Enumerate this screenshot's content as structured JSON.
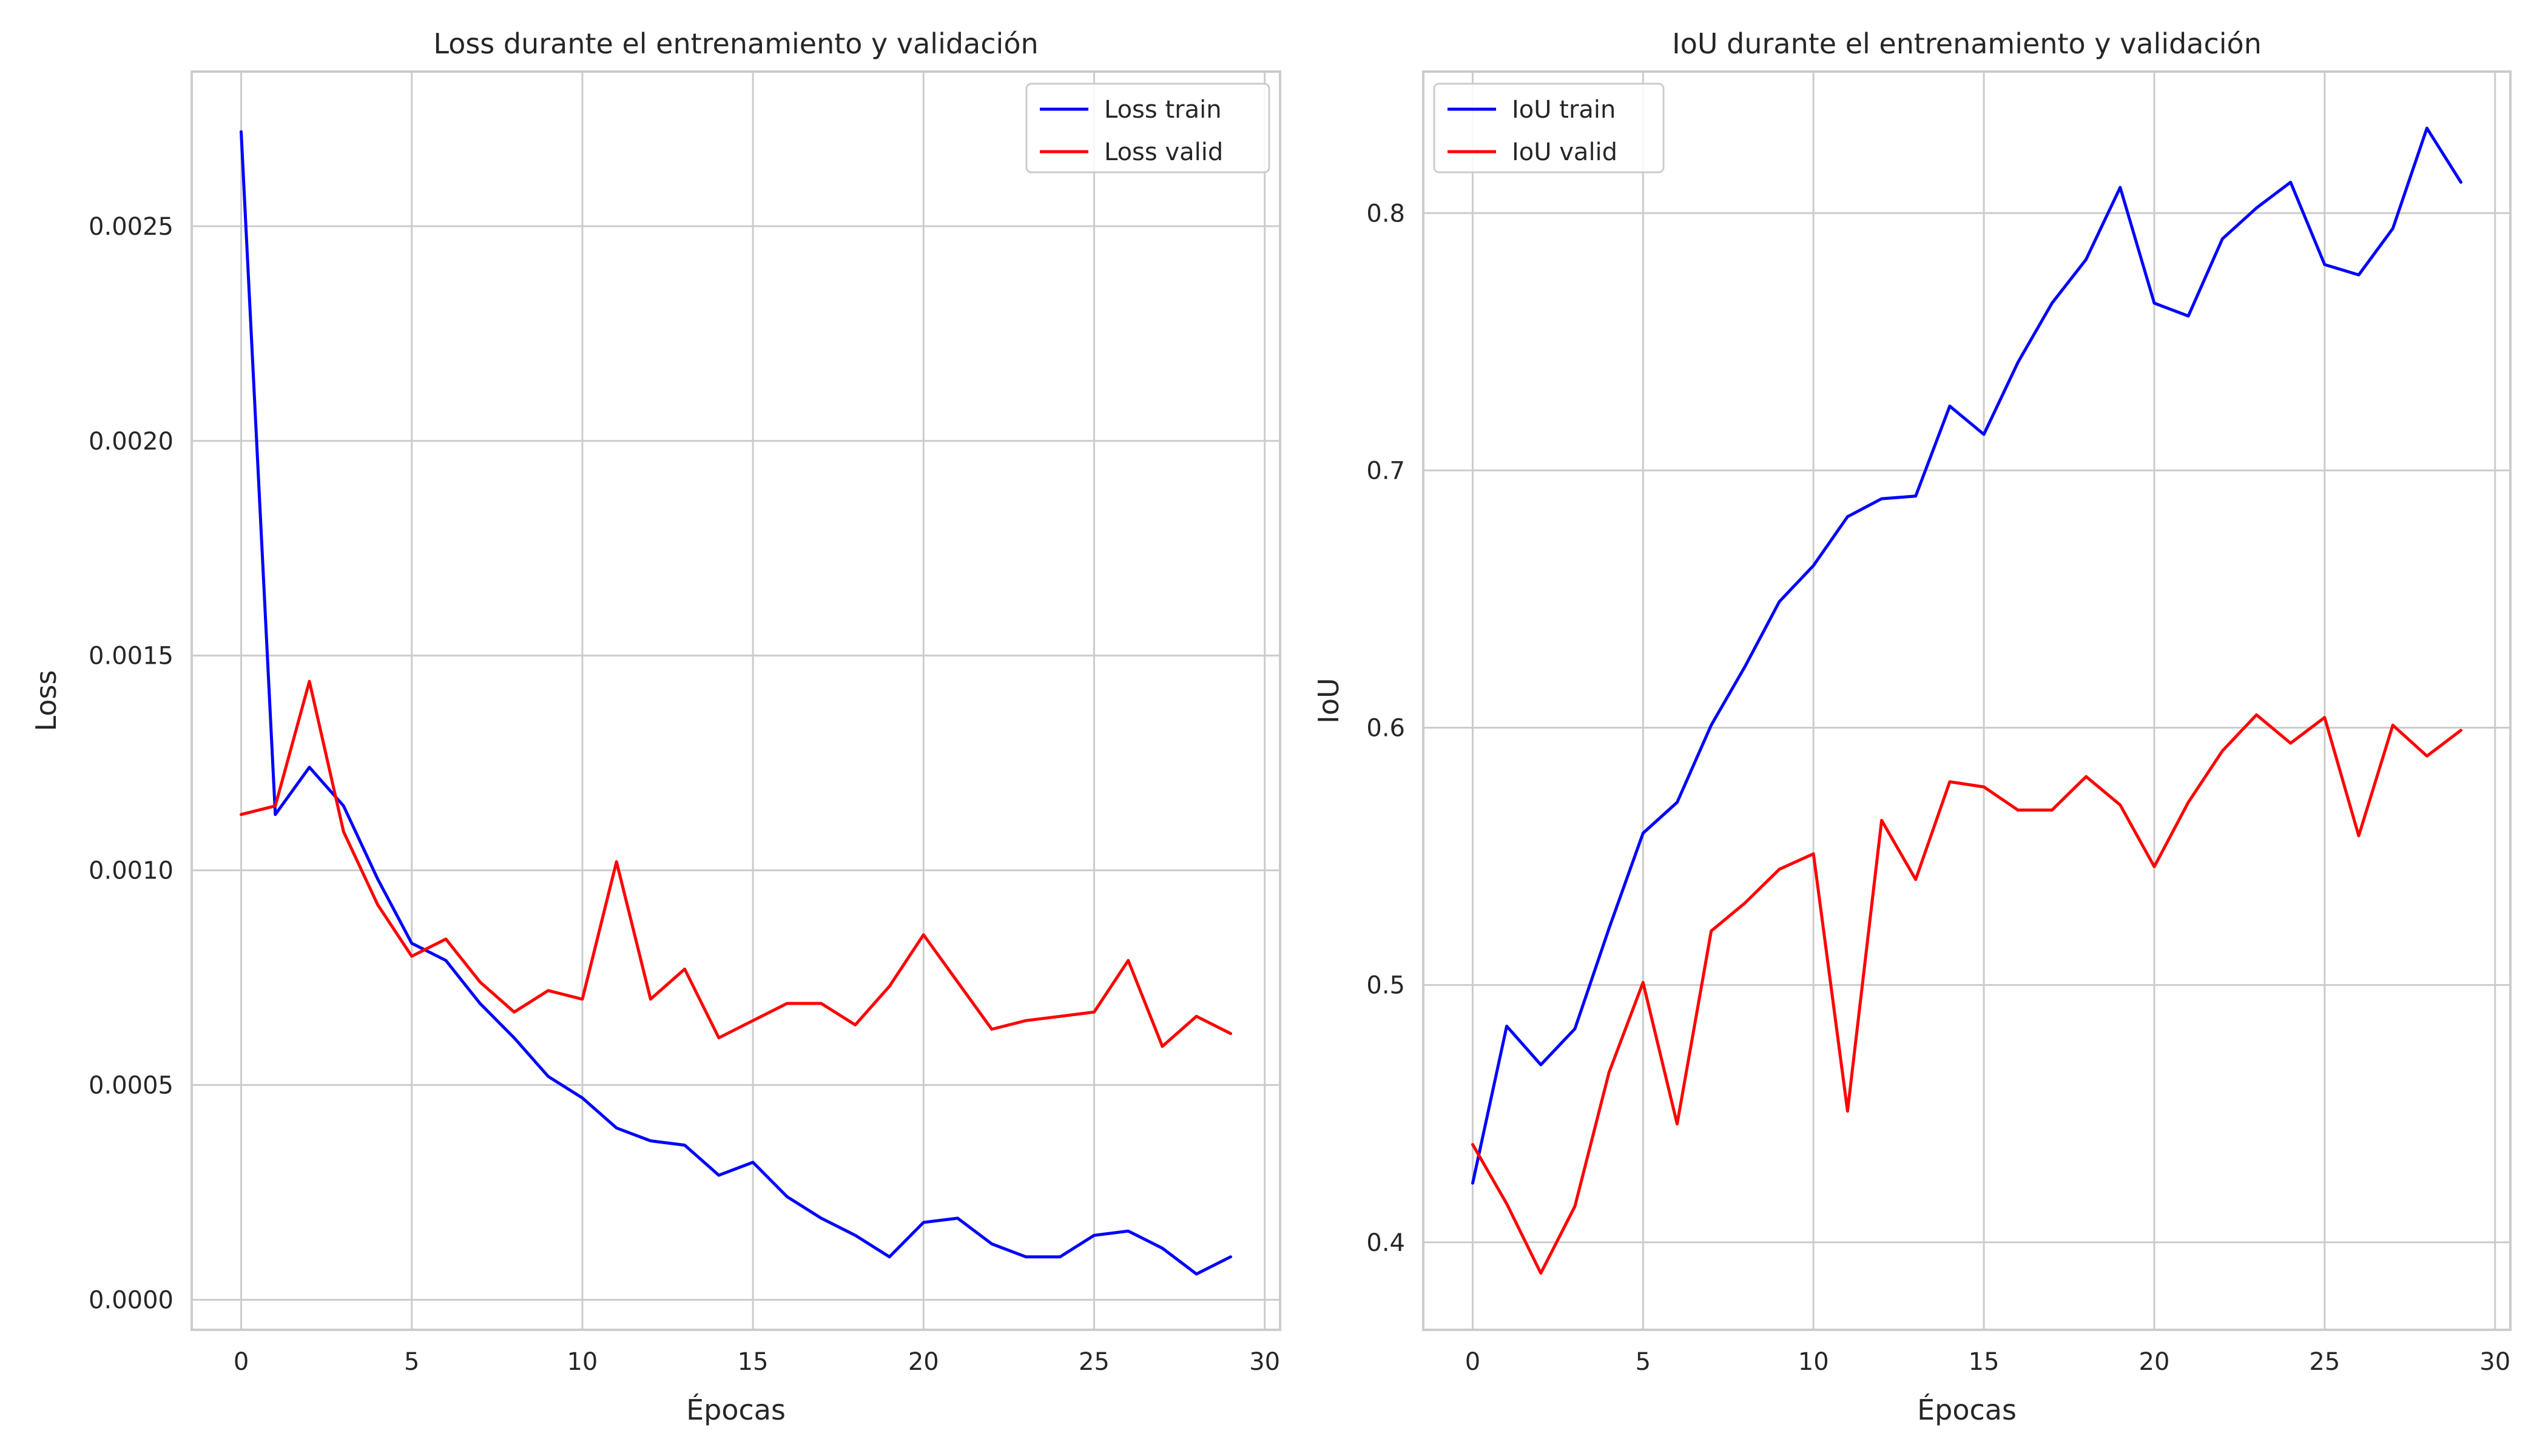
{
  "chart_data": [
    {
      "type": "line",
      "title": "Loss durante el entrenamiento y validación",
      "xlabel": "Épocas",
      "ylabel": "Loss",
      "xlim": [
        -1.45,
        30.45
      ],
      "ylim": [
        -7e-05,
        0.00286
      ],
      "xticks": [
        0,
        5,
        10,
        15,
        20,
        25,
        30
      ],
      "xtick_labels": [
        "0",
        "5",
        "10",
        "15",
        "20",
        "25",
        "30"
      ],
      "yticks": [
        0,
        0.0005,
        0.001,
        0.0015,
        0.002,
        0.0025
      ],
      "ytick_labels": [
        "0.0000",
        "0.0005",
        "0.0010",
        "0.0015",
        "0.0020",
        "0.0025"
      ],
      "grid": true,
      "legend_position": "top-right",
      "x": [
        0,
        1,
        2,
        3,
        4,
        5,
        6,
        7,
        8,
        9,
        10,
        11,
        12,
        13,
        14,
        15,
        16,
        17,
        18,
        19,
        20,
        21,
        22,
        23,
        24,
        25,
        26,
        27,
        28,
        29
      ],
      "series": [
        {
          "name": "Loss train",
          "color": "#0000ff",
          "values": [
            0.00272,
            0.00113,
            0.00124,
            0.00115,
            0.00098,
            0.00083,
            0.00079,
            0.00069,
            0.00061,
            0.00052,
            0.00047,
            0.0004,
            0.00037,
            0.00036,
            0.00029,
            0.00032,
            0.00024,
            0.00019,
            0.00015,
            0.0001,
            0.00018,
            0.00019,
            0.00013,
            0.0001,
            0.0001,
            0.00015,
            0.00016,
            0.00012,
            6e-05,
            0.0001
          ]
        },
        {
          "name": "Loss valid",
          "color": "#ff0000",
          "values": [
            0.00113,
            0.00115,
            0.00144,
            0.00109,
            0.00092,
            0.0008,
            0.00084,
            0.00074,
            0.00067,
            0.00072,
            0.0007,
            0.00102,
            0.0007,
            0.00077,
            0.00061,
            0.00065,
            0.00069,
            0.00069,
            0.00064,
            0.00073,
            0.00085,
            0.00074,
            0.00063,
            0.00065,
            0.00066,
            0.00067,
            0.00079,
            0.00059,
            0.00066,
            0.00062
          ]
        }
      ]
    },
    {
      "type": "line",
      "title": "IoU durante el entrenamiento y validación",
      "xlabel": "Épocas",
      "ylabel": "IoU",
      "xlim": [
        -1.45,
        30.45
      ],
      "ylim": [
        0.366,
        0.855
      ],
      "xticks": [
        0,
        5,
        10,
        15,
        20,
        25,
        30
      ],
      "xtick_labels": [
        "0",
        "5",
        "10",
        "15",
        "20",
        "25",
        "30"
      ],
      "yticks": [
        0.4,
        0.5,
        0.6,
        0.7,
        0.8
      ],
      "ytick_labels": [
        "0.4",
        "0.5",
        "0.6",
        "0.7",
        "0.8"
      ],
      "grid": true,
      "legend_position": "top-left",
      "x": [
        0,
        1,
        2,
        3,
        4,
        5,
        6,
        7,
        8,
        9,
        10,
        11,
        12,
        13,
        14,
        15,
        16,
        17,
        18,
        19,
        20,
        21,
        22,
        23,
        24,
        25,
        26,
        27,
        28,
        29
      ],
      "series": [
        {
          "name": "IoU train",
          "color": "#0000ff",
          "values": [
            0.423,
            0.484,
            0.469,
            0.483,
            0.522,
            0.559,
            0.571,
            0.601,
            0.624,
            0.649,
            0.663,
            0.682,
            0.689,
            0.69,
            0.725,
            0.714,
            0.742,
            0.765,
            0.782,
            0.81,
            0.765,
            0.76,
            0.79,
            0.802,
            0.812,
            0.78,
            0.776,
            0.794,
            0.833,
            0.812
          ]
        },
        {
          "name": "IoU valid",
          "color": "#ff0000",
          "values": [
            0.438,
            0.415,
            0.388,
            0.414,
            0.466,
            0.501,
            0.446,
            0.521,
            0.532,
            0.545,
            0.551,
            0.451,
            0.564,
            0.541,
            0.579,
            0.577,
            0.568,
            0.568,
            0.581,
            0.57,
            0.546,
            0.571,
            0.591,
            0.605,
            0.594,
            0.604,
            0.558,
            0.601,
            0.589,
            0.599
          ]
        }
      ]
    }
  ]
}
